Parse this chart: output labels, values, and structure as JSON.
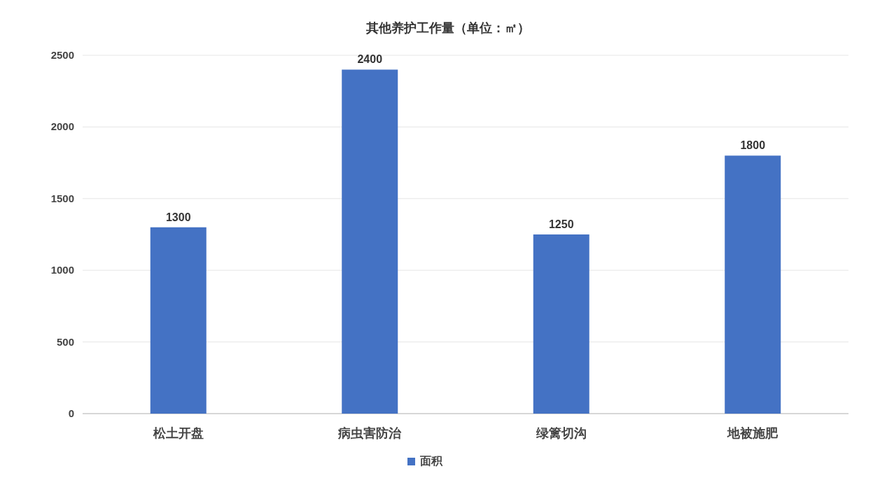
{
  "chart_data": {
    "type": "bar",
    "title": "其他养护工作量（单位：㎡）",
    "categories": [
      "松土开盘",
      "病虫害防治",
      "绿篱切沟",
      "地被施肥"
    ],
    "series": [
      {
        "name": "面积",
        "color": "#4472c4",
        "values": [
          1300,
          2400,
          1250,
          1800
        ]
      }
    ],
    "ylim": [
      0,
      2500
    ],
    "yticks": [
      0,
      500,
      1000,
      1500,
      2000,
      2500
    ],
    "grid": "y",
    "legend": "bottom",
    "data_labels": true
  }
}
